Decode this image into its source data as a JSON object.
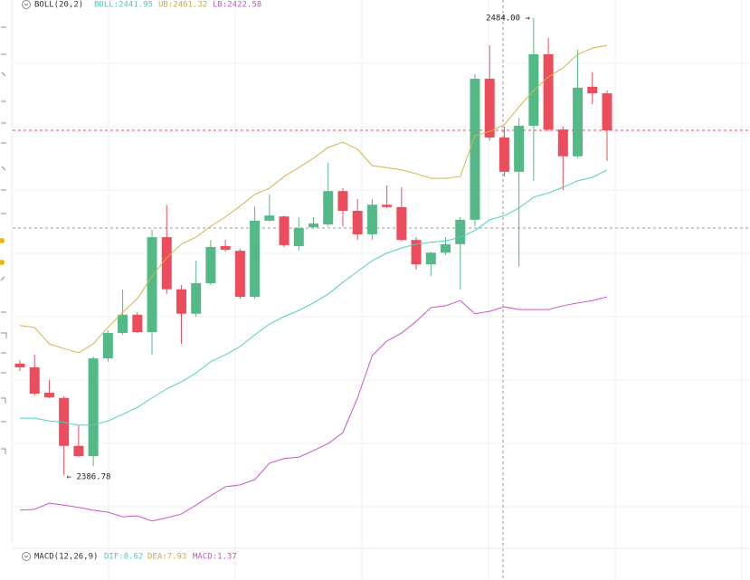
{
  "chart_data": {
    "type": "candlestick",
    "indicator_label": "BOLL(20,2)",
    "indicator_texts": [
      "BOLL:2441.95",
      "UB:2461.32",
      "LB:2422.58"
    ],
    "indicator_colors": [
      "#4fc7bd",
      "#c9a93e",
      "#c355c6"
    ],
    "annotations": [
      "2484.00 →",
      "← 2386.78"
    ],
    "up_color": "#53b987",
    "down_color": "#eb4d5c",
    "ylim": [
      2371.39,
      2487.85
    ],
    "open": [
      2410.5,
      2409.7,
      2404.3,
      2403.2,
      2393.0,
      2390.8,
      2411.6,
      2417.0,
      2420.9,
      2417.2,
      2437.4,
      2426.3,
      2421.1,
      2427.6,
      2435.5,
      2434.5,
      2424.7,
      2440.9,
      2441.8,
      2435.5,
      2439.5,
      2440.1,
      2447.2,
      2443.0,
      2438.0,
      2444.3,
      2443.8,
      2436.8,
      2431.6,
      2434.1,
      2435.9,
      2441.1,
      2471.1,
      2458.6,
      2451.3,
      2461.1,
      2476.3,
      2460.3,
      2454.6,
      2469.4,
      2468.0
    ],
    "high": [
      2411.2,
      2412.4,
      2407.0,
      2403.5,
      2397.4,
      2412.0,
      2417.6,
      2426.3,
      2421.4,
      2439.0,
      2444.2,
      2427.2,
      2432.4,
      2436.8,
      2436.8,
      2434.9,
      2444.0,
      2446.5,
      2442.0,
      2441.7,
      2441.7,
      2453.2,
      2447.8,
      2445.5,
      2445.5,
      2448.4,
      2448.0,
      2437.4,
      2434.3,
      2437.4,
      2441.7,
      2472.1,
      2478.2,
      2460.9,
      2462.8,
      2484.0,
      2479.8,
      2460.9,
      2477.3,
      2472.5,
      2468.6
    ],
    "low": [
      2408.9,
      2403.7,
      2403.2,
      2386.78,
      2390.6,
      2388.7,
      2410.9,
      2416.6,
      2417.0,
      2412.4,
      2425.3,
      2414.7,
      2420.5,
      2427.2,
      2434.3,
      2424.3,
      2424.3,
      2440.7,
      2435.3,
      2434.5,
      2439.3,
      2439.7,
      2439.7,
      2436.8,
      2436.8,
      2443.6,
      2436.5,
      2430.5,
      2429.1,
      2433.6,
      2426.3,
      2439.7,
      2458.0,
      2450.3,
      2431.1,
      2449.4,
      2459.9,
      2447.4,
      2454.2,
      2465.7,
      2453.6
    ],
    "close": [
      2409.7,
      2404.1,
      2403.3,
      2393.0,
      2390.8,
      2411.6,
      2417.0,
      2420.9,
      2417.2,
      2437.4,
      2426.3,
      2421.1,
      2427.6,
      2435.3,
      2434.7,
      2424.7,
      2440.9,
      2442.0,
      2435.7,
      2439.3,
      2440.3,
      2447.2,
      2443.0,
      2438.0,
      2444.3,
      2443.8,
      2436.8,
      2431.6,
      2434.1,
      2435.9,
      2441.1,
      2471.1,
      2458.6,
      2451.3,
      2461.1,
      2476.3,
      2460.3,
      2454.6,
      2469.2,
      2468.0,
      2460.1
    ],
    "overlays": [
      {
        "color": "#4fd0c3",
        "values": [
          2398.9,
          2398.9,
          2398.3,
          2398.0,
          2397.4,
          2397.4,
          2398.3,
          2399.7,
          2401.2,
          2403.2,
          2405.1,
          2406.6,
          2408.5,
          2410.9,
          2412.4,
          2414.1,
          2416.6,
          2418.9,
          2420.5,
          2421.8,
          2423.4,
          2425.3,
          2427.8,
          2430.1,
          2432.4,
          2434.0,
          2435.1,
          2435.9,
          2436.3,
          2436.6,
          2437.4,
          2438.8,
          2441.1,
          2441.95,
          2443.6,
          2445.9,
          2446.8,
          2448.0,
          2449.4,
          2450.1,
          2451.7
        ]
      },
      {
        "color": "#d4b44a",
        "values": [
          2418.6,
          2418.2,
          2414.7,
          2413.7,
          2412.8,
          2414.7,
          2418.2,
          2421.4,
          2424.3,
          2429.1,
          2433.0,
          2435.9,
          2437.4,
          2439.7,
          2441.7,
          2444.0,
          2446.5,
          2447.8,
          2450.3,
          2452.2,
          2454.2,
          2456.5,
          2457.6,
          2456.1,
          2452.6,
          2452.2,
          2451.7,
          2450.9,
          2449.9,
          2449.9,
          2450.3,
          2459.0,
          2459.9,
          2461.32,
          2465.1,
          2468.6,
          2471.5,
          2473.4,
          2476.3,
          2477.6,
          2478.2
        ]
      },
      {
        "color": "#c955cc",
        "values": [
          2379.3,
          2379.5,
          2380.8,
          2380.4,
          2379.9,
          2379.3,
          2378.9,
          2377.9,
          2378.1,
          2377.0,
          2377.7,
          2378.5,
          2380.4,
          2382.4,
          2384.3,
          2384.7,
          2385.8,
          2389.3,
          2390.3,
          2390.6,
          2392.0,
          2393.5,
          2395.8,
          2403.2,
          2412.2,
          2415.3,
          2417.0,
          2419.5,
          2422.4,
          2422.8,
          2423.9,
          2421.1,
          2421.6,
          2422.58,
          2422.0,
          2422.0,
          2422.0,
          2422.8,
          2423.4,
          2423.9,
          2424.7
        ]
      }
    ],
    "macd_label": "MACD(12,26,9)",
    "macd_texts": [
      "DIF:8.62",
      "DEA:7.93",
      "MACD:1.37"
    ],
    "macd_colors": [
      "#4fc7bd",
      "#c9a93e",
      "#c355c6"
    ]
  }
}
